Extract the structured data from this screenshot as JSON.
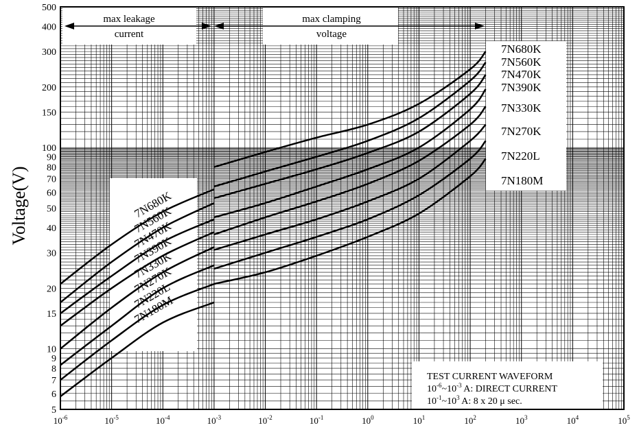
{
  "chart_data": {
    "type": "line",
    "ylabel": "Voltage(V)",
    "x_scale": "log",
    "y_scale": "log",
    "xlim": [
      1e-06,
      100000
    ],
    "ylim": [
      5,
      500
    ],
    "grid": true,
    "x_ticks": [
      {
        "base": "10",
        "exp": "-6",
        "value": 1e-06
      },
      {
        "base": "10",
        "exp": "-5",
        "value": 1e-05
      },
      {
        "base": "10",
        "exp": "-4",
        "value": 0.0001
      },
      {
        "base": "10",
        "exp": "-3",
        "value": 0.001
      },
      {
        "base": "10",
        "exp": "-2",
        "value": 0.01
      },
      {
        "base": "10",
        "exp": "-1",
        "value": 0.1
      },
      {
        "base": "10",
        "exp": "0",
        "value": 1
      },
      {
        "base": "10",
        "exp": "1",
        "value": 10
      },
      {
        "base": "10",
        "exp": "2",
        "value": 100
      },
      {
        "base": "10",
        "exp": "3",
        "value": 1000
      },
      {
        "base": "10",
        "exp": "4",
        "value": 10000
      },
      {
        "base": "10",
        "exp": "5",
        "value": 100000
      }
    ],
    "y_ticks": [
      5,
      6,
      7,
      8,
      9,
      10,
      15,
      20,
      30,
      40,
      50,
      60,
      70,
      80,
      90,
      100,
      150,
      200,
      300,
      400,
      500
    ],
    "annotations": {
      "leakage": [
        "max leakage",
        "current"
      ],
      "clamping": [
        "max clamping",
        "voltage"
      ],
      "waveform_title": "TEST CURRENT WAVEFORM",
      "waveform_dc": {
        "base1": "10",
        "exp1": "-6",
        "sep": "~",
        "base2": "10",
        "exp2": "-3",
        "rest": " A: DIRECT CURRENT"
      },
      "waveform_pulse": {
        "base1": "10",
        "exp1": "-1",
        "sep": "~",
        "base2": "10",
        "exp2": "3",
        "rest": " A: 8 x 20  μ  sec."
      }
    },
    "series": [
      {
        "name": "7N680K",
        "leakage": [
          [
            1e-06,
            21
          ],
          [
            1e-05,
            33
          ],
          [
            0.0001,
            48
          ],
          [
            0.001,
            62
          ]
        ],
        "clamping": [
          [
            0.001,
            80
          ],
          [
            0.01,
            95
          ],
          [
            0.1,
            112
          ],
          [
            1,
            130
          ],
          [
            10,
            165
          ],
          [
            100,
            245
          ],
          [
            200,
            300
          ]
        ]
      },
      {
        "name": "7N560K",
        "leakage": [
          [
            1e-06,
            17
          ],
          [
            1e-05,
            27
          ],
          [
            0.0001,
            40
          ],
          [
            0.001,
            53
          ]
        ],
        "clamping": [
          [
            0.001,
            64
          ],
          [
            0.01,
            76
          ],
          [
            0.1,
            90
          ],
          [
            1,
            108
          ],
          [
            10,
            140
          ],
          [
            100,
            215
          ],
          [
            200,
            265
          ]
        ]
      },
      {
        "name": "7N470K",
        "leakage": [
          [
            1e-06,
            15
          ],
          [
            1e-05,
            23
          ],
          [
            0.0001,
            34
          ],
          [
            0.001,
            44
          ]
        ],
        "clamping": [
          [
            0.001,
            56
          ],
          [
            0.01,
            66
          ],
          [
            0.1,
            78
          ],
          [
            1,
            94
          ],
          [
            10,
            120
          ],
          [
            100,
            185
          ],
          [
            200,
            230
          ]
        ]
      },
      {
        "name": "7N390K",
        "leakage": [
          [
            1e-06,
            13
          ],
          [
            1e-05,
            20
          ],
          [
            0.0001,
            29
          ],
          [
            0.001,
            38
          ]
        ],
        "clamping": [
          [
            0.001,
            45
          ],
          [
            0.01,
            53
          ],
          [
            0.1,
            64
          ],
          [
            1,
            78
          ],
          [
            10,
            100
          ],
          [
            100,
            155
          ],
          [
            200,
            195
          ]
        ]
      },
      {
        "name": "7N330K",
        "leakage": [
          [
            1e-06,
            10
          ],
          [
            1e-05,
            16
          ],
          [
            0.0001,
            24
          ],
          [
            0.001,
            32
          ]
        ],
        "clamping": [
          [
            0.001,
            37
          ],
          [
            0.01,
            45
          ],
          [
            0.1,
            54
          ],
          [
            1,
            66
          ],
          [
            10,
            86
          ],
          [
            100,
            130
          ],
          [
            200,
            160
          ]
        ]
      },
      {
        "name": "7N270K",
        "leakage": [
          [
            1e-06,
            8.3
          ],
          [
            1e-05,
            13
          ],
          [
            0.0001,
            20
          ],
          [
            0.001,
            26
          ]
        ],
        "clamping": [
          [
            0.001,
            31
          ],
          [
            0.01,
            37
          ],
          [
            0.1,
            44
          ],
          [
            1,
            54
          ],
          [
            10,
            70
          ],
          [
            100,
            108
          ],
          [
            200,
            130
          ]
        ]
      },
      {
        "name": "7N220L",
        "leakage": [
          [
            1e-06,
            7
          ],
          [
            1e-05,
            11
          ],
          [
            0.0001,
            16.5
          ],
          [
            0.001,
            21
          ]
        ],
        "clamping": [
          [
            0.001,
            25
          ],
          [
            0.01,
            30
          ],
          [
            0.1,
            36
          ],
          [
            1,
            44
          ],
          [
            10,
            58
          ],
          [
            100,
            88
          ],
          [
            200,
            108
          ]
        ]
      },
      {
        "name": "7N180M",
        "leakage": [
          [
            1e-06,
            5.8
          ],
          [
            1e-05,
            9
          ],
          [
            0.0001,
            13.5
          ],
          [
            0.001,
            17
          ]
        ],
        "clamping": [
          [
            0.001,
            21
          ],
          [
            0.01,
            24
          ],
          [
            0.1,
            29
          ],
          [
            1,
            36
          ],
          [
            10,
            47
          ],
          [
            100,
            72
          ],
          [
            200,
            88
          ]
        ]
      }
    ]
  }
}
